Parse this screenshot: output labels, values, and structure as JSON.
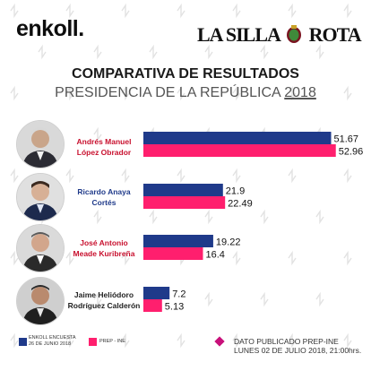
{
  "header": {
    "enkoll_logo": "enkoll.",
    "partner_logo_left": "LA SILLA",
    "partner_logo_right": "ROTA"
  },
  "titles": {
    "line1": "COMPARATIVA DE RESULTADOS",
    "line2_prefix": "PRESIDENCIA DE LA REPÚBLICA ",
    "line2_year": "2018"
  },
  "candidates": [
    {
      "name_line1": "Andrés Manuel",
      "name_line2": "López Obrador",
      "name_color": "#c8102e"
    },
    {
      "name_line1": "Ricardo Anaya",
      "name_line2": "Cortés",
      "name_color": "#1f3a8a"
    },
    {
      "name_line1": "José Antonio",
      "name_line2": "Meade Kuribreña",
      "name_color": "#c8102e"
    },
    {
      "name_line1": "Jaime Heliódoro",
      "name_line2": "Rodríguez Calderón",
      "name_color": "#222222"
    }
  ],
  "chart_data": {
    "type": "bar",
    "orientation": "horizontal",
    "categories": [
      "Andrés Manuel López Obrador",
      "Ricardo Anaya Cortés",
      "José Antonio Meade Kuribreña",
      "Jaime Heliódoro Rodríguez Calderón"
    ],
    "series": [
      {
        "name": "ENKOLL ENCUESTA 26 DE JUNIO 2018",
        "color": "#1f3a8a",
        "values": [
          51.67,
          21.9,
          19.22,
          7.2
        ]
      },
      {
        "name": "PREP - INE",
        "color": "#ff1f6e",
        "values": [
          52.96,
          22.49,
          16.4,
          5.13
        ]
      }
    ],
    "value_labels": [
      [
        "51.67",
        "21.9",
        "19.22",
        "7.2"
      ],
      [
        "52.96",
        "22.49",
        "16.4",
        "5.13"
      ]
    ],
    "xlim": [
      0,
      55
    ],
    "grid": false,
    "legend": "bottom-left"
  },
  "legend": {
    "enkoll_line1": "ENKOLL ENCUESTA",
    "enkoll_line2": "26 DE JUNIO 2018",
    "prep": "PREP - INE"
  },
  "note": {
    "line1": "DATO PUBLICADO PREP-INE",
    "line2": "LUNES 02 DE JULIO 2018, 21:00hrs."
  },
  "colors": {
    "enkoll_blue": "#1f3a8a",
    "prep_pink": "#ff1f6e",
    "accent_red": "#c8102e"
  }
}
